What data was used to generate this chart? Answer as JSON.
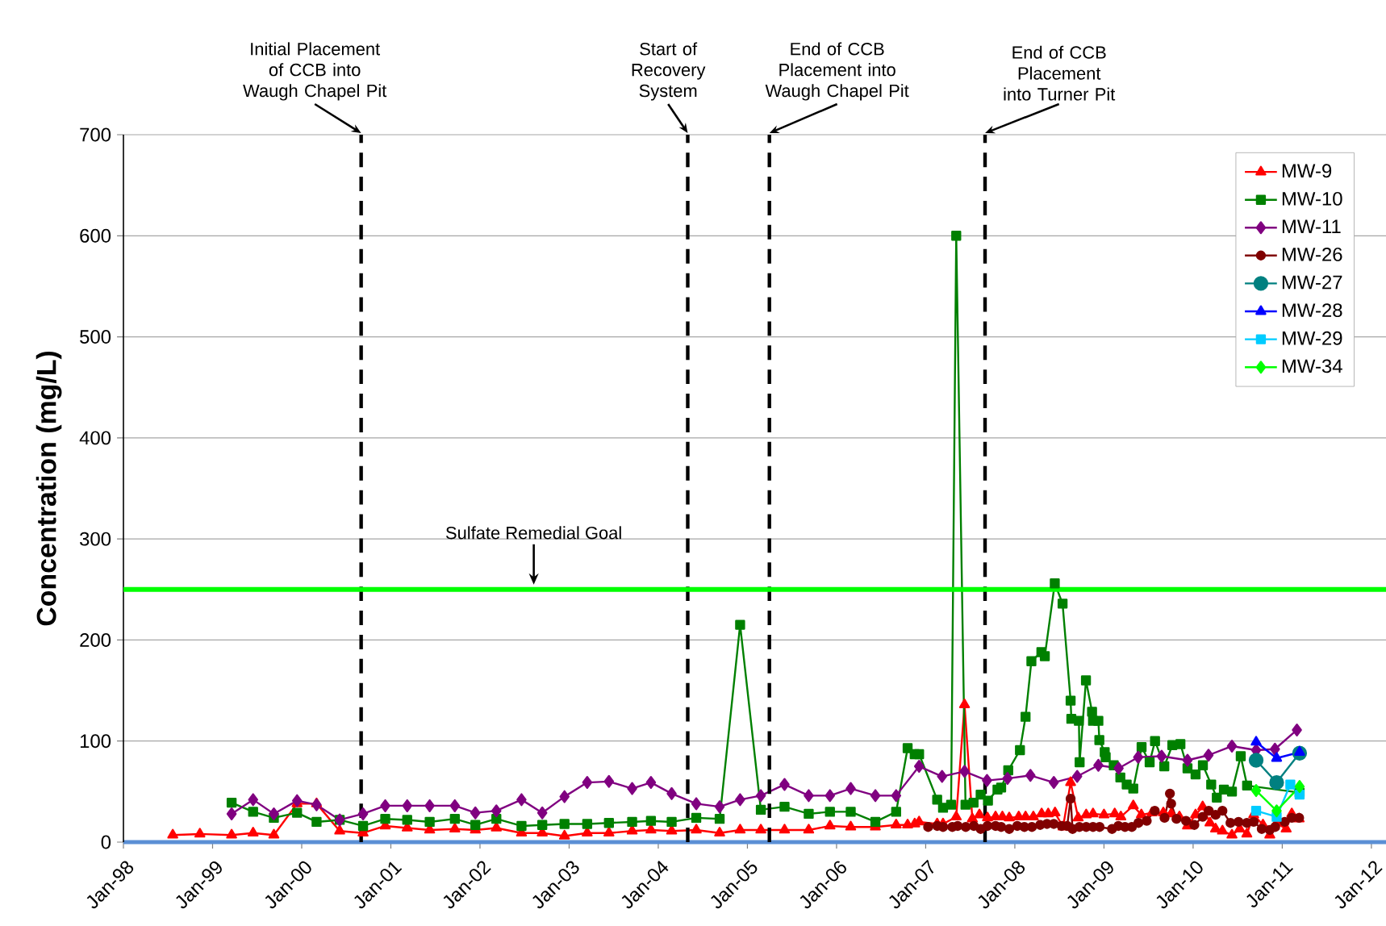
{
  "chart_data": {
    "type": "line",
    "ylabel": "Concentration (mg/L)",
    "xlim": [
      "1998-01",
      "2012-03"
    ],
    "ylim": [
      0,
      700
    ],
    "xticks": [
      {
        "value": "1998-01",
        "label": "Jan-98"
      },
      {
        "value": "1999-01",
        "label": "Jan-99"
      },
      {
        "value": "2000-01",
        "label": "Jan-00"
      },
      {
        "value": "2001-01",
        "label": "Jan-01"
      },
      {
        "value": "2002-01",
        "label": "Jan-02"
      },
      {
        "value": "2003-01",
        "label": "Jan-03"
      },
      {
        "value": "2004-01",
        "label": "Jan-04"
      },
      {
        "value": "2005-01",
        "label": "Jan-05"
      },
      {
        "value": "2006-01",
        "label": "Jan-06"
      },
      {
        "value": "2007-01",
        "label": "Jan-07"
      },
      {
        "value": "2008-01",
        "label": "Jan-08"
      },
      {
        "value": "2009-01",
        "label": "Jan-09"
      },
      {
        "value": "2010-01",
        "label": "Jan-10"
      },
      {
        "value": "2011-01",
        "label": "Jan-11"
      },
      {
        "value": "2012-01",
        "label": "Jan-12"
      }
    ],
    "yticks": [
      0,
      100,
      200,
      300,
      400,
      500,
      600,
      700
    ],
    "grid": "y",
    "legend": "top right",
    "line_style": "solid",
    "ref_lines": [
      {
        "axis": "x",
        "value": "2000-09-01",
        "label": "Initial Placement of CCB into Waugh Chapel Pit",
        "color": "#000000",
        "line_style": "dashed"
      },
      {
        "axis": "x",
        "value": "2004-05-01",
        "label": "Start of Recovery System",
        "color": "#000000",
        "line_style": "dashed"
      },
      {
        "axis": "x",
        "value": "2005-04-01",
        "label": "End of CCB Placement into Waugh Chapel Pit",
        "color": "#000000",
        "line_style": "dashed"
      },
      {
        "axis": "x",
        "value": "2007-09-01",
        "label": "End of CCB Placement into Turner Pit",
        "color": "#000000",
        "line_style": "dashed"
      },
      {
        "axis": "y",
        "value": 250,
        "label": "Sulfate Remedial Goal",
        "color": "#00ff00",
        "line_style": "solid"
      }
    ],
    "series": [
      {
        "name": "MW-9",
        "color": "#ff0000",
        "marker": "triangle",
        "x": [
          "1998-07-22",
          "1998-11-10",
          "1999-03-20",
          "1999-06-16",
          "1999-09-09",
          "1999-12-13",
          "2000-03-02",
          "2000-06-05",
          "2000-09-09",
          "2000-12-09",
          "2001-03-09",
          "2001-06-09",
          "2001-09-20",
          "2001-12-13",
          "2002-03-09",
          "2002-06-20",
          "2002-09-13",
          "2002-12-13",
          "2003-03-16",
          "2003-06-13",
          "2003-09-16",
          "2003-12-02",
          "2004-02-25",
          "2004-06-05",
          "2004-09-09",
          "2004-12-02",
          "2005-02-25",
          "2005-06-02",
          "2005-09-09",
          "2005-12-05",
          "2006-02-28",
          "2006-06-09",
          "2006-09-02",
          "2006-10-19",
          "2006-11-17",
          "2006-12-05",
          "2007-02-17",
          "2007-03-13",
          "2007-05-06",
          "2007-06-09",
          "2007-07-11",
          "2007-08-09",
          "2007-09-11",
          "2007-10-14",
          "2007-11-11",
          "2007-12-09",
          "2008-01-17",
          "2008-02-14",
          "2008-03-17",
          "2008-04-20",
          "2008-05-17",
          "2008-06-14",
          "2008-07-17",
          "2008-08-17",
          "2008-09-17",
          "2008-10-20",
          "2008-11-17",
          "2009-01-01",
          "2009-02-14",
          "2009-03-11",
          "2009-05-01",
          "2009-06-03",
          "2009-07-17",
          "2009-09-01",
          "2009-10-03",
          "2009-11-06",
          "2009-12-09",
          "2010-01-11",
          "2010-02-09",
          "2010-03-11",
          "2010-04-03",
          "2010-05-01",
          "2010-06-09",
          "2010-07-11",
          "2010-08-09",
          "2010-09-06",
          "2010-10-14",
          "2010-11-11",
          "2010-12-09",
          "2011-01-17",
          "2011-02-09",
          "2011-03-11"
        ],
        "values": [
          7,
          8,
          7,
          9,
          7,
          38,
          38,
          11,
          9,
          16,
          14,
          12,
          13,
          12,
          14,
          9,
          9,
          6,
          9,
          9,
          11,
          12,
          11,
          12,
          9,
          12,
          12,
          12,
          12,
          16,
          15,
          15,
          17,
          17,
          18,
          20,
          18,
          18,
          25,
          136,
          23,
          27,
          24,
          25,
          25,
          24,
          25,
          25,
          25,
          28,
          28,
          29,
          15,
          59,
          24,
          27,
          28,
          27,
          28,
          25,
          36,
          27,
          29,
          29,
          28,
          25,
          16,
          27,
          35,
          19,
          13,
          11,
          7,
          13,
          8,
          27,
          17,
          7,
          19,
          13,
          28,
          23
        ]
      },
      {
        "name": "MW-10",
        "color": "#008000",
        "marker": "square",
        "x": [
          "1999-03-20",
          "1999-06-16",
          "1999-09-09",
          "1999-12-13",
          "2000-03-02",
          "2000-06-05",
          "2000-09-09",
          "2000-12-09",
          "2001-03-09",
          "2001-06-09",
          "2001-09-20",
          "2001-12-13",
          "2002-03-09",
          "2002-06-20",
          "2002-09-13",
          "2002-12-13",
          "2003-03-16",
          "2003-06-13",
          "2003-09-16",
          "2003-12-02",
          "2004-02-25",
          "2004-06-05",
          "2004-09-09",
          "2004-12-02",
          "2005-02-25",
          "2005-06-02",
          "2005-09-09",
          "2005-12-05",
          "2006-02-28",
          "2006-06-09",
          "2006-09-02",
          "2006-10-19",
          "2006-11-17",
          "2006-12-05",
          "2007-02-17",
          "2007-03-13",
          "2007-04-15",
          "2007-05-06",
          "2007-06-13",
          "2007-07-16",
          "2007-08-14",
          "2007-09-13",
          "2007-10-22",
          "2007-11-06",
          "2007-12-05",
          "2008-01-22",
          "2008-02-14",
          "2008-03-09",
          "2008-04-19",
          "2008-05-03",
          "2008-06-13",
          "2008-07-15",
          "2008-08-17",
          "2008-08-20",
          "2008-09-20",
          "2008-09-23",
          "2008-10-19",
          "2008-11-13",
          "2008-11-17",
          "2008-12-09",
          "2008-12-13",
          "2009-01-04",
          "2009-01-08",
          "2009-02-10",
          "2009-03-09",
          "2009-04-04",
          "2009-05-01",
          "2009-06-04",
          "2009-07-07",
          "2009-07-29",
          "2009-09-05",
          "2009-10-08",
          "2009-11-10",
          "2009-12-09",
          "2010-01-11",
          "2010-02-10",
          "2010-03-16",
          "2010-04-08",
          "2010-05-07",
          "2010-06-09",
          "2010-07-15",
          "2010-08-10",
          "2011-03-13"
        ],
        "values": [
          39,
          30,
          24,
          29,
          20,
          22,
          16,
          23,
          22,
          20,
          23,
          17,
          23,
          16,
          17,
          18,
          18,
          19,
          20,
          21,
          20,
          24,
          23,
          215,
          32,
          35,
          28,
          30,
          30,
          20,
          30,
          93,
          87,
          87,
          42,
          34,
          37,
          600,
          37,
          39,
          47,
          41,
          52,
          54,
          71,
          91,
          124,
          179,
          188,
          184,
          256,
          236,
          140,
          122,
          120,
          79,
          160,
          129,
          120,
          120,
          101,
          89,
          84,
          76,
          64,
          57,
          53,
          94,
          79,
          100,
          75,
          96,
          97,
          73,
          67,
          76,
          57,
          44,
          52,
          50,
          85,
          56,
          49
        ]
      },
      {
        "name": "MW-11",
        "color": "#800080",
        "marker": "diamond",
        "x": [
          "1999-03-20",
          "1999-06-16",
          "1999-09-09",
          "1999-12-13",
          "2000-03-02",
          "2000-06-05",
          "2000-09-09",
          "2000-12-09",
          "2001-03-09",
          "2001-06-09",
          "2001-09-20",
          "2001-12-13",
          "2002-03-09",
          "2002-06-20",
          "2002-09-13",
          "2002-12-13",
          "2003-03-16",
          "2003-06-13",
          "2003-09-16",
          "2003-12-02",
          "2004-02-25",
          "2004-06-05",
          "2004-09-09",
          "2004-12-02",
          "2005-02-25",
          "2005-06-02",
          "2005-09-09",
          "2005-12-05",
          "2006-02-28",
          "2006-06-09",
          "2006-09-02",
          "2006-12-05",
          "2007-03-09",
          "2007-06-09",
          "2007-09-09",
          "2007-12-02",
          "2008-03-05",
          "2008-06-09",
          "2008-09-13",
          "2008-12-09",
          "2009-03-02",
          "2009-05-21",
          "2009-08-25",
          "2009-12-09",
          "2010-03-05",
          "2010-06-09",
          "2010-09-16",
          "2010-12-02",
          "2011-03-02"
        ],
        "values": [
          28,
          42,
          28,
          41,
          37,
          22,
          28,
          36,
          36,
          36,
          36,
          29,
          31,
          42,
          29,
          45,
          59,
          60,
          53,
          59,
          48,
          38,
          35,
          42,
          46,
          57,
          46,
          46,
          53,
          46,
          46,
          75,
          65,
          70,
          61,
          63,
          66,
          59,
          65,
          76,
          73,
          84,
          85,
          81,
          86,
          95,
          91,
          92,
          111
        ]
      },
      {
        "name": "MW-26",
        "color": "#800000",
        "marker": "circle",
        "x": [
          "2007-01-11",
          "2007-02-17",
          "2007-03-13",
          "2007-04-20",
          "2007-05-12",
          "2007-06-14",
          "2007-07-17",
          "2007-08-14",
          "2007-09-11",
          "2007-10-14",
          "2007-11-06",
          "2007-12-09",
          "2008-01-11",
          "2008-02-09",
          "2008-03-11",
          "2008-04-14",
          "2008-05-12",
          "2008-06-09",
          "2008-07-11",
          "2008-08-03",
          "2008-08-17",
          "2008-08-25",
          "2008-09-22",
          "2008-10-20",
          "2008-11-17",
          "2008-12-14",
          "2009-02-03",
          "2009-03-01",
          "2009-03-28",
          "2009-04-25",
          "2009-05-22",
          "2009-06-25",
          "2009-07-28",
          "2009-09-06",
          "2009-09-28",
          "2009-10-03",
          "2009-10-25",
          "2009-12-03",
          "2010-01-06",
          "2010-02-09",
          "2010-03-06",
          "2010-04-03",
          "2010-05-01",
          "2010-06-03",
          "2010-07-06",
          "2010-08-09",
          "2010-09-06",
          "2010-10-09",
          "2010-11-11",
          "2010-12-03",
          "2011-01-11",
          "2011-02-09",
          "2011-03-11"
        ],
        "values": [
          15,
          16,
          15,
          15,
          16,
          15,
          16,
          13,
          16,
          16,
          15,
          13,
          16,
          15,
          15,
          17,
          18,
          18,
          16,
          16,
          43,
          13,
          15,
          15,
          15,
          15,
          13,
          16,
          15,
          15,
          19,
          21,
          31,
          24,
          48,
          38,
          23,
          21,
          17,
          25,
          31,
          27,
          31,
          19,
          20,
          19,
          20,
          13,
          12,
          15,
          20,
          24,
          24
        ]
      },
      {
        "name": "MW-27",
        "color": "#008080",
        "marker": "circle",
        "x": [
          "2010-09-16",
          "2010-12-09",
          "2011-03-13"
        ],
        "values": [
          81,
          59,
          88
        ]
      },
      {
        "name": "MW-28",
        "color": "#0000ff",
        "marker": "triangle",
        "x": [
          "2010-09-16",
          "2010-12-09",
          "2011-03-13"
        ],
        "values": [
          99,
          83,
          89
        ]
      },
      {
        "name": "MW-29",
        "color": "#00ccff",
        "marker": "square",
        "x": [
          "2010-09-16",
          "2010-12-09",
          "2011-02-03",
          "2011-03-13"
        ],
        "values": [
          31,
          25,
          57,
          47
        ]
      },
      {
        "name": "MW-34",
        "color": "#00ff00",
        "marker": "diamond",
        "x": [
          "2010-09-16",
          "2010-12-09",
          "2011-03-13"
        ],
        "values": [
          51,
          31,
          55
        ]
      }
    ]
  }
}
